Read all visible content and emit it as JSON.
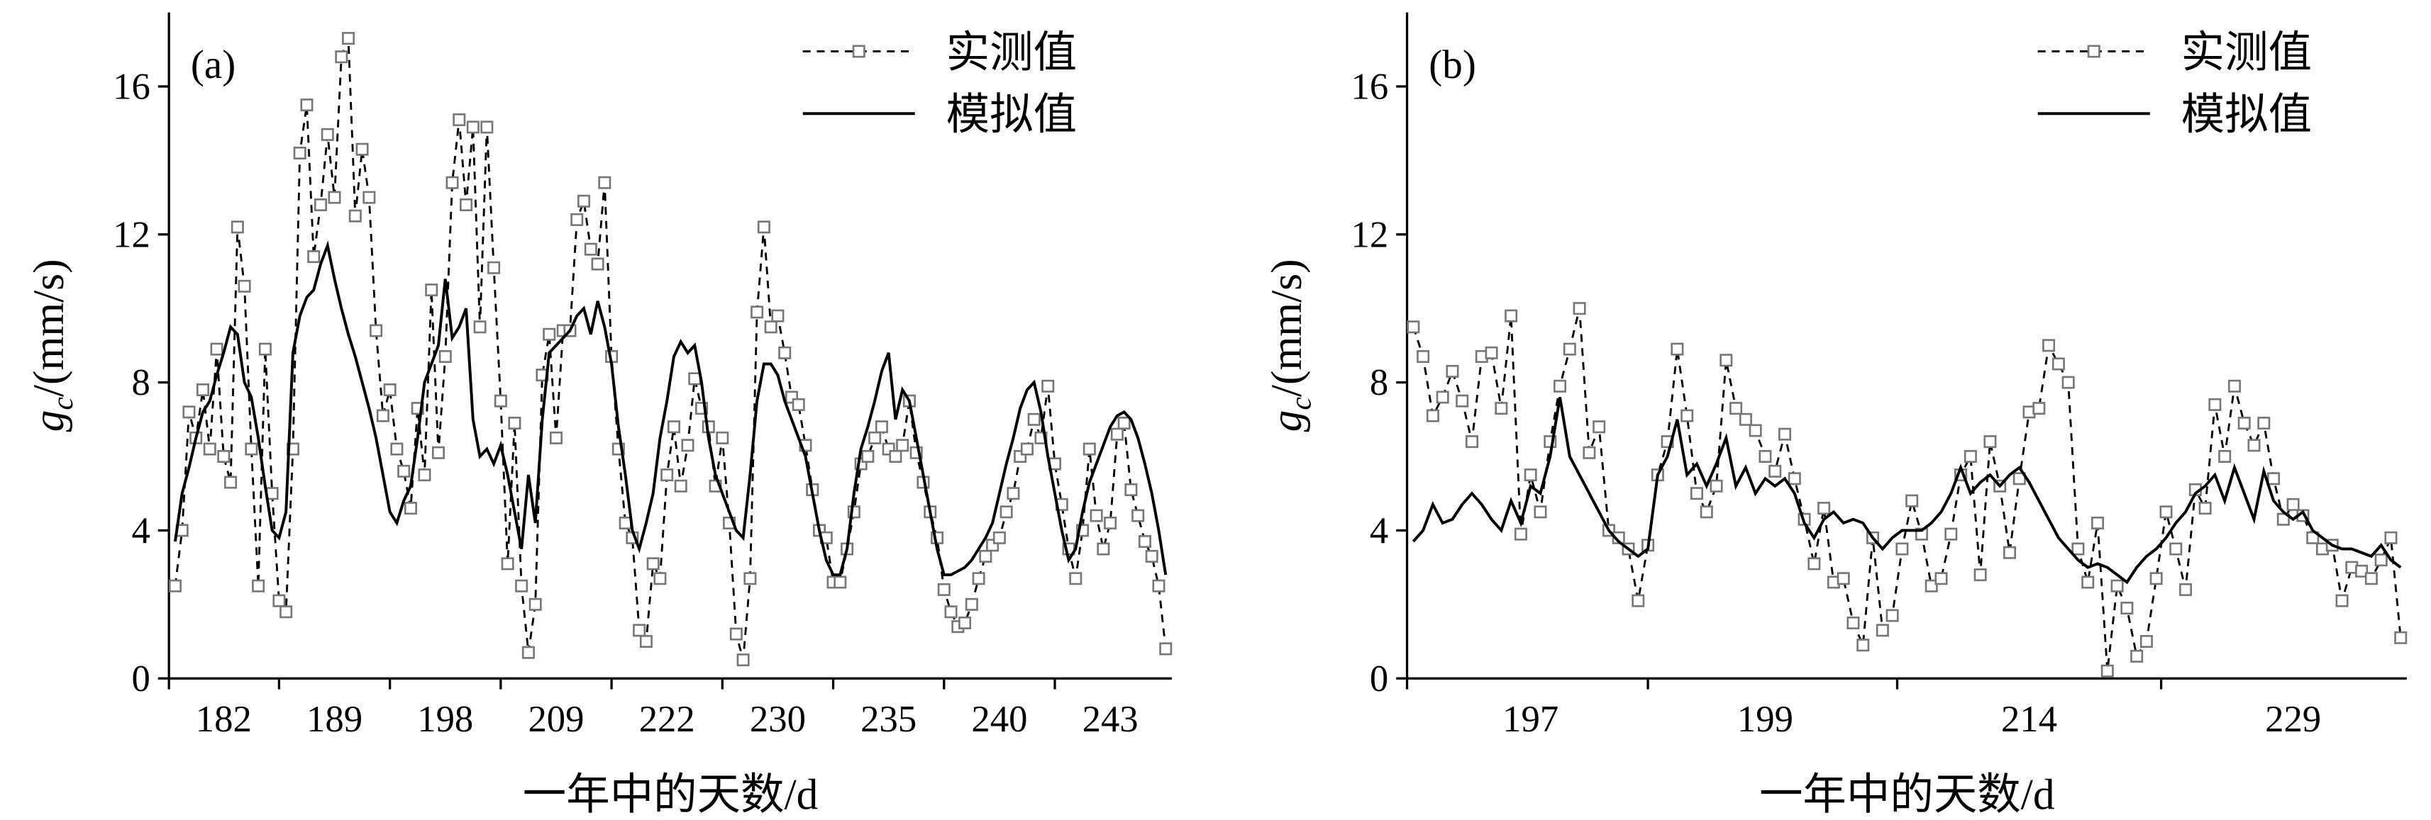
{
  "chart_data": [
    {
      "type": "line",
      "label": "(a)",
      "ylabel": [
        "g",
        "c",
        "/(mm/s)"
      ],
      "xlabel": "一年中的天数/d",
      "ylim": [
        0,
        18
      ],
      "yticks": [
        0,
        4,
        8,
        12,
        16
      ],
      "categories": [
        null,
        null,
        null,
        null,
        null,
        null,
        null,
        "182",
        null,
        null,
        null,
        null,
        null,
        null,
        null,
        null,
        null,
        null,
        null,
        null,
        null,
        null,
        null,
        "189",
        null,
        null,
        null,
        null,
        null,
        null,
        null,
        null,
        null,
        null,
        null,
        null,
        null,
        null,
        null,
        "198",
        null,
        null,
        null,
        null,
        null,
        null,
        null,
        null,
        null,
        null,
        null,
        null,
        null,
        null,
        null,
        "209",
        null,
        null,
        null,
        null,
        null,
        null,
        null,
        null,
        null,
        null,
        null,
        null,
        null,
        null,
        null,
        "222",
        null,
        null,
        null,
        null,
        null,
        null,
        null,
        null,
        null,
        null,
        null,
        null,
        null,
        null,
        null,
        "230",
        null,
        null,
        null,
        null,
        null,
        null,
        null,
        null,
        null,
        null,
        null,
        null,
        null,
        null,
        null,
        "235",
        null,
        null,
        null,
        null,
        null,
        null,
        null,
        null,
        null,
        null,
        null,
        null,
        null,
        null,
        null,
        "240",
        null,
        null,
        null,
        null,
        null,
        null,
        null,
        null,
        null,
        null,
        null,
        null,
        null,
        null,
        null,
        "243",
        null,
        null,
        null,
        null,
        null,
        null,
        null,
        null
      ],
      "series": [
        {
          "name": "实测值",
          "color": "#000000",
          "marker_color": "#777777",
          "dashed": true,
          "marker": "square",
          "values": [
            2.5,
            4,
            7.2,
            6.5,
            7.8,
            6.2,
            8.9,
            6,
            5.3,
            12.2,
            10.6,
            6.2,
            2.5,
            8.9,
            5,
            2.1,
            1.8,
            6.2,
            14.2,
            15.5,
            11.4,
            12.8,
            14.7,
            13,
            16.8,
            17.3,
            12.5,
            14.3,
            13,
            9.4,
            7.1,
            7.8,
            6.2,
            5.6,
            4.6,
            7.3,
            5.5,
            10.5,
            6.1,
            8.7,
            13.4,
            15.1,
            12.8,
            14.9,
            9.5,
            14.9,
            11.1,
            7.5,
            3.1,
            6.9,
            2.5,
            0.7,
            2.0,
            8.2,
            9.3,
            6.5,
            9.4,
            9.4,
            12.4,
            12.9,
            11.6,
            11.2,
            13.4,
            8.7,
            6.2,
            4.2,
            3.8,
            1.3,
            1.0,
            3.1,
            2.7,
            5.5,
            6.8,
            5.2,
            6.3,
            8.1,
            7.3,
            6.8,
            5.2,
            6.5,
            4.2,
            1.2,
            0.5,
            2.7,
            9.9,
            12.2,
            9.5,
            9.8,
            8.8,
            7.6,
            7.4,
            6.3,
            5.1,
            4.0,
            3.8,
            2.6,
            2.6,
            3.5,
            4.5,
            5.8,
            6.0,
            6.5,
            6.8,
            6.2,
            6.0,
            6.3,
            7.5,
            6.1,
            5.3,
            4.5,
            3.8,
            2.4,
            1.8,
            1.4,
            1.5,
            2.0,
            2.7,
            3.3,
            3.6,
            3.8,
            4.5,
            5.0,
            6.0,
            6.2,
            7.0,
            6.5,
            7.9,
            5.8,
            4.7,
            3.5,
            2.7,
            4,
            6.2,
            4.4,
            3.5,
            4.2,
            6.6,
            6.9,
            5.1,
            4.4,
            3.7,
            3.3,
            2.5,
            0.8
          ]
        },
        {
          "name": "模拟值",
          "color": "#000000",
          "dashed": false,
          "values": [
            3.7,
            5,
            5.7,
            6.5,
            7.2,
            7.5,
            8.2,
            8.8,
            9.5,
            9.3,
            8,
            7.6,
            6.5,
            5.2,
            4,
            3.8,
            4.5,
            8.8,
            9.8,
            10.3,
            10.5,
            11.2,
            11.7,
            10.8,
            10,
            9.3,
            8.7,
            8,
            7.3,
            6.5,
            5.5,
            4.5,
            4.2,
            4.8,
            5.2,
            6.5,
            8,
            8.5,
            9,
            10.8,
            9.2,
            9.5,
            10,
            7,
            6,
            6.2,
            5.8,
            6.3,
            5.5,
            4.5,
            3.5,
            5.5,
            4.2,
            7,
            8.8,
            9,
            9.2,
            9.4,
            9.8,
            10,
            9.3,
            10.2,
            9.5,
            8.5,
            6.8,
            5.5,
            4,
            3.5,
            4.2,
            5,
            6.5,
            7.5,
            8.7,
            9.1,
            8.8,
            9,
            8,
            6.5,
            5.5,
            5,
            4.5,
            4,
            3.8,
            5.5,
            7.5,
            8.5,
            8.5,
            8.2,
            7.5,
            7,
            6.5,
            6,
            5,
            4,
            3.2,
            2.8,
            2.8,
            3.5,
            5,
            6.2,
            6.8,
            7.5,
            8.3,
            8.8,
            7,
            7.8,
            7.5,
            6.5,
            5.5,
            4.5,
            3.5,
            2.8,
            2.8,
            2.9,
            3,
            3.2,
            3.5,
            3.8,
            4.2,
            5,
            5.8,
            6.5,
            7.3,
            7.8,
            8,
            7.2,
            6,
            5,
            4,
            3.2,
            3.5,
            4.5,
            5.3,
            5.8,
            6.3,
            6.8,
            7.1,
            7.2,
            7,
            6.5,
            5.8,
            5,
            4,
            2.8
          ]
        }
      ]
    },
    {
      "type": "line",
      "label": "(b)",
      "ylabel": [
        "g",
        "c",
        "/(mm/s)"
      ],
      "xlabel": "一年中的天数/d",
      "ylim": [
        0,
        18
      ],
      "yticks": [
        0,
        4,
        8,
        12,
        16
      ],
      "categories": [
        null,
        null,
        null,
        null,
        null,
        null,
        null,
        null,
        null,
        null,
        null,
        null,
        "197",
        null,
        null,
        null,
        null,
        null,
        null,
        null,
        null,
        null,
        null,
        null,
        null,
        null,
        null,
        null,
        null,
        null,
        null,
        null,
        null,
        null,
        null,
        null,
        "199",
        null,
        null,
        null,
        null,
        null,
        null,
        null,
        null,
        null,
        null,
        null,
        null,
        null,
        null,
        null,
        null,
        null,
        null,
        null,
        null,
        null,
        null,
        null,
        null,
        null,
        null,
        "214",
        null,
        null,
        null,
        null,
        null,
        null,
        null,
        null,
        null,
        null,
        null,
        null,
        null,
        null,
        null,
        null,
        null,
        null,
        null,
        null,
        null,
        null,
        null,
        null,
        null,
        null,
        "229",
        null,
        null,
        null,
        null,
        null,
        null,
        null,
        null,
        null,
        null,
        null
      ],
      "series": [
        {
          "name": "实测值",
          "color": "#000000",
          "marker_color": "#777777",
          "dashed": true,
          "marker": "square",
          "values": [
            9.5,
            8.7,
            7.1,
            7.6,
            8.3,
            7.5,
            6.4,
            8.7,
            8.8,
            7.3,
            9.8,
            3.9,
            5.5,
            4.5,
            6.4,
            7.9,
            8.9,
            10.0,
            6.1,
            6.8,
            4.0,
            3.8,
            3.5,
            2.1,
            3.6,
            5.5,
            6.4,
            8.9,
            7.1,
            5.0,
            4.5,
            5.2,
            8.6,
            7.3,
            7.0,
            6.7,
            6.0,
            5.6,
            6.6,
            5.4,
            4.3,
            3.1,
            4.6,
            2.6,
            2.7,
            1.5,
            0.9,
            3.8,
            1.3,
            1.7,
            3.5,
            4.8,
            3.9,
            2.5,
            2.7,
            3.9,
            5.5,
            6.0,
            2.8,
            6.4,
            5.2,
            3.4,
            5.4,
            7.2,
            7.3,
            9.0,
            8.5,
            8.0,
            3.5,
            2.6,
            4.2,
            0.2,
            2.5,
            1.9,
            0.6,
            1.0,
            2.7,
            4.5,
            3.5,
            2.4,
            5.1,
            4.6,
            7.4,
            6.0,
            7.9,
            6.9,
            6.3,
            6.9,
            5.4,
            4.3,
            4.7,
            4.4,
            3.8,
            3.5,
            3.6,
            2.1,
            3.0,
            2.9,
            2.7,
            3.2,
            3.8,
            1.1
          ]
        },
        {
          "name": "模拟值",
          "color": "#000000",
          "dashed": false,
          "values": [
            3.7,
            4,
            4.7,
            4.2,
            4.3,
            4.7,
            5,
            4.7,
            4.3,
            4,
            4.8,
            4.2,
            5.2,
            5,
            6,
            7.6,
            6,
            5.5,
            5,
            4.5,
            4,
            3.7,
            3.5,
            3.3,
            3.5,
            5.5,
            6,
            7,
            5.5,
            5.8,
            5.2,
            5.8,
            6.5,
            5.2,
            5.7,
            5,
            5.4,
            5.2,
            5.4,
            5,
            4.2,
            3.8,
            4.3,
            4.5,
            4.2,
            4.3,
            4.2,
            3.8,
            3.5,
            3.8,
            4,
            4,
            4,
            4.2,
            4.5,
            5,
            5.7,
            5,
            5.3,
            5.5,
            5.2,
            5.5,
            5.7,
            5.3,
            4.8,
            4.3,
            3.8,
            3.5,
            3.2,
            3.0,
            3.1,
            3,
            2.8,
            2.6,
            3,
            3.3,
            3.5,
            3.8,
            4.2,
            4.5,
            5,
            5.2,
            5.5,
            4.8,
            5.7,
            5,
            4.3,
            5.6,
            4.8,
            4.5,
            4.3,
            4.5,
            4,
            3.8,
            3.6,
            3.5,
            3.5,
            3.4,
            3.3,
            3.6,
            3.2,
            3
          ]
        }
      ]
    }
  ]
}
